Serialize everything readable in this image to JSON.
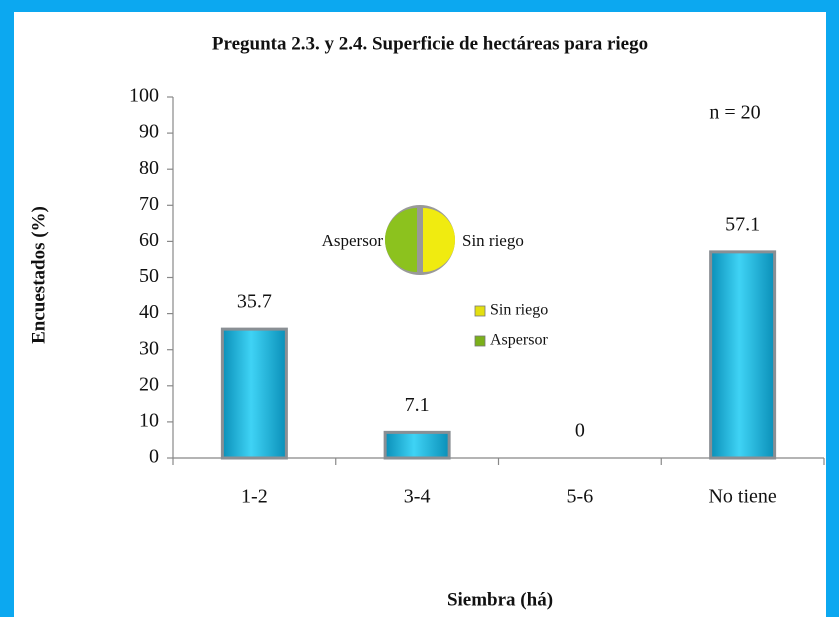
{
  "chart_data": {
    "type": "bar",
    "title": "Pregunta 2.3. y 2.4. Superficie de hectáreas para riego",
    "x_label": "Siembra (há)",
    "y_label": "Encuestados (%)",
    "annotation": "n = 20",
    "categories": [
      "1-2",
      "3-4",
      "5-6",
      "No tiene"
    ],
    "values": [
      35.7,
      7.1,
      0,
      57.1
    ],
    "color": "#19b9e3",
    "ylim": [
      0,
      100
    ],
    "yticks": [
      0,
      10,
      20,
      30,
      40,
      50,
      60,
      70,
      80,
      90,
      100
    ],
    "grid": false,
    "legend": [
      {
        "name": "Sin riego",
        "color": "#e3df10"
      },
      {
        "name": "Aspersor",
        "color": "#7bb01a"
      }
    ],
    "icon_labels": [
      "Aspersor",
      "Sin riego"
    ]
  }
}
